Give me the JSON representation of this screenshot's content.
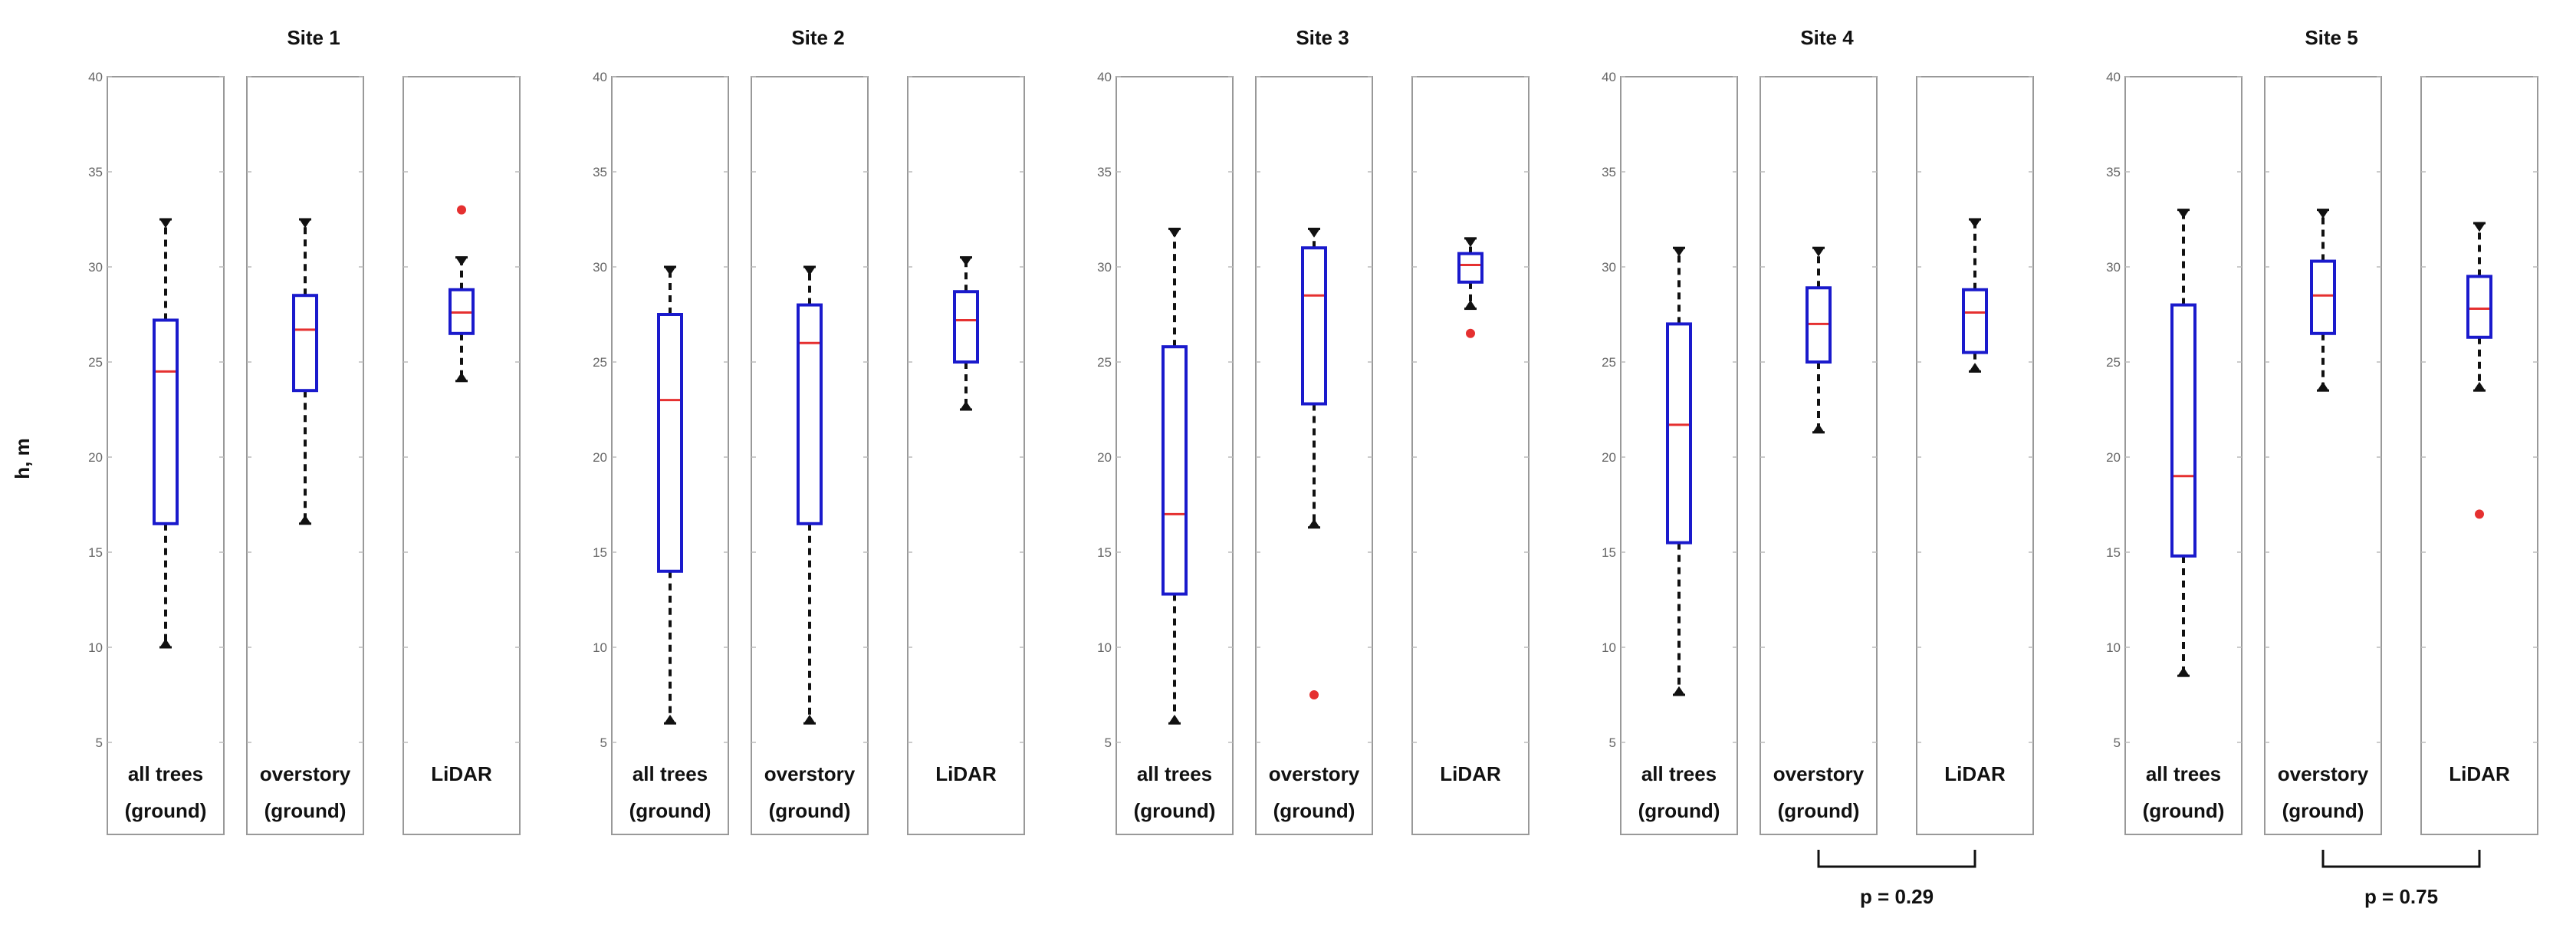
{
  "chart_data": {
    "type": "box",
    "ylabel": "h, m",
    "ylim": [
      5,
      40
    ],
    "yticks": [
      5,
      10,
      15,
      20,
      25,
      30,
      35,
      40
    ],
    "grid": true,
    "colors": {
      "box": "#1a1acc",
      "median": "#e53030",
      "outlier": "#e53030",
      "whisker": "#111111",
      "frame": "#999999"
    },
    "sites": [
      {
        "title": "Site 1",
        "comparison": null,
        "groups": [
          {
            "label": [
              "all trees",
              "(ground)"
            ],
            "whislo": 10,
            "q1": 16.5,
            "med": 24.5,
            "q3": 27.2,
            "whishi": 32.5,
            "outliers": []
          },
          {
            "label": [
              "overstory",
              "(ground)"
            ],
            "whislo": 16.5,
            "q1": 23.5,
            "med": 26.7,
            "q3": 28.5,
            "whishi": 32.5,
            "outliers": []
          },
          {
            "label": [
              "LiDAR"
            ],
            "whislo": 24,
            "q1": 26.5,
            "med": 27.6,
            "q3": 28.8,
            "whishi": 30.5,
            "outliers": [
              33
            ]
          }
        ]
      },
      {
        "title": "Site 2",
        "comparison": null,
        "groups": [
          {
            "label": [
              "all trees",
              "(ground)"
            ],
            "whislo": 6,
            "q1": 14,
            "med": 23,
            "q3": 27.5,
            "whishi": 30,
            "outliers": []
          },
          {
            "label": [
              "overstory",
              "(ground)"
            ],
            "whislo": 6,
            "q1": 16.5,
            "med": 26,
            "q3": 28,
            "whishi": 30,
            "outliers": []
          },
          {
            "label": [
              "LiDAR"
            ],
            "whislo": 22.5,
            "q1": 25,
            "med": 27.2,
            "q3": 28.7,
            "whishi": 30.5,
            "outliers": []
          }
        ]
      },
      {
        "title": "Site 3",
        "comparison": null,
        "groups": [
          {
            "label": [
              "all trees",
              "(ground)"
            ],
            "whislo": 6,
            "q1": 12.8,
            "med": 17,
            "q3": 25.8,
            "whishi": 32,
            "outliers": []
          },
          {
            "label": [
              "overstory",
              "(ground)"
            ],
            "whislo": 16.3,
            "q1": 22.8,
            "med": 28.5,
            "q3": 31,
            "whishi": 32,
            "outliers": [
              7.5
            ]
          },
          {
            "label": [
              "LiDAR"
            ],
            "whislo": 27.8,
            "q1": 29.2,
            "med": 30.1,
            "q3": 30.7,
            "whishi": 31.5,
            "outliers": [
              26.5
            ]
          }
        ]
      },
      {
        "title": "Site 4",
        "comparison": {
          "from": 1,
          "to": 2,
          "text": "p = 0.29"
        },
        "groups": [
          {
            "label": [
              "all trees",
              "(ground)"
            ],
            "whislo": 7.5,
            "q1": 15.5,
            "med": 21.7,
            "q3": 27,
            "whishi": 31,
            "outliers": []
          },
          {
            "label": [
              "overstory",
              "(ground)"
            ],
            "whislo": 21.3,
            "q1": 25,
            "med": 27,
            "q3": 28.9,
            "whishi": 31,
            "outliers": []
          },
          {
            "label": [
              "LiDAR"
            ],
            "whislo": 24.5,
            "q1": 25.5,
            "med": 27.6,
            "q3": 28.8,
            "whishi": 32.5,
            "outliers": []
          }
        ]
      },
      {
        "title": "Site 5",
        "comparison": {
          "from": 1,
          "to": 2,
          "text": "p = 0.75"
        },
        "groups": [
          {
            "label": [
              "all trees",
              "(ground)"
            ],
            "whislo": 8.5,
            "q1": 14.8,
            "med": 19,
            "q3": 28,
            "whishi": 33,
            "outliers": []
          },
          {
            "label": [
              "overstory",
              "(ground)"
            ],
            "whislo": 23.5,
            "q1": 26.5,
            "med": 28.5,
            "q3": 30.3,
            "whishi": 33,
            "outliers": []
          },
          {
            "label": [
              "LiDAR"
            ],
            "whislo": 23.5,
            "q1": 26.3,
            "med": 27.8,
            "q3": 29.5,
            "whishi": 32.3,
            "outliers": [
              17
            ]
          }
        ]
      }
    ]
  }
}
